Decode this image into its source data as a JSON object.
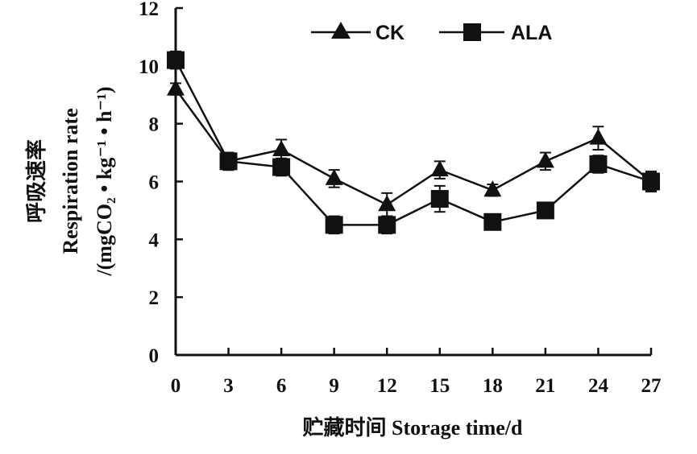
{
  "chart_data": {
    "type": "line",
    "x": [
      0,
      3,
      6,
      9,
      12,
      15,
      18,
      21,
      24,
      27
    ],
    "x_tick_labels": [
      "0",
      "3",
      "6",
      "9",
      "12",
      "15",
      "18",
      "21",
      "24",
      "27"
    ],
    "y_tick_labels": [
      "0",
      "2",
      "4",
      "6",
      "8",
      "10",
      "12"
    ],
    "xlim": [
      0,
      27
    ],
    "ylim": [
      0,
      12
    ],
    "xlabel": "贮藏时间 Storage time/d",
    "ylabel_lines": [
      "呼吸速率",
      "Respiration rate",
      "/(mgCO₂ • kg⁻¹ • h⁻¹)"
    ],
    "grid": false,
    "legend_position": "top-right",
    "series": [
      {
        "name": "CK",
        "marker": "triangle",
        "values": [
          9.2,
          6.7,
          7.1,
          6.1,
          5.2,
          6.4,
          5.7,
          6.7,
          7.5,
          6.0
        ],
        "error": [
          0.2,
          0.3,
          0.35,
          0.3,
          0.4,
          0.3,
          0.2,
          0.3,
          0.4,
          0.3
        ]
      },
      {
        "name": "ALA",
        "marker": "square",
        "values": [
          10.2,
          6.7,
          6.5,
          4.5,
          4.5,
          5.4,
          4.6,
          5.0,
          6.6,
          6.0
        ],
        "error": [
          0.3,
          0.3,
          0.3,
          0.3,
          0.3,
          0.45,
          0.2,
          0.2,
          0.3,
          0.35
        ]
      }
    ],
    "colors": {
      "line": "#111111",
      "background": "#ffffff"
    }
  }
}
